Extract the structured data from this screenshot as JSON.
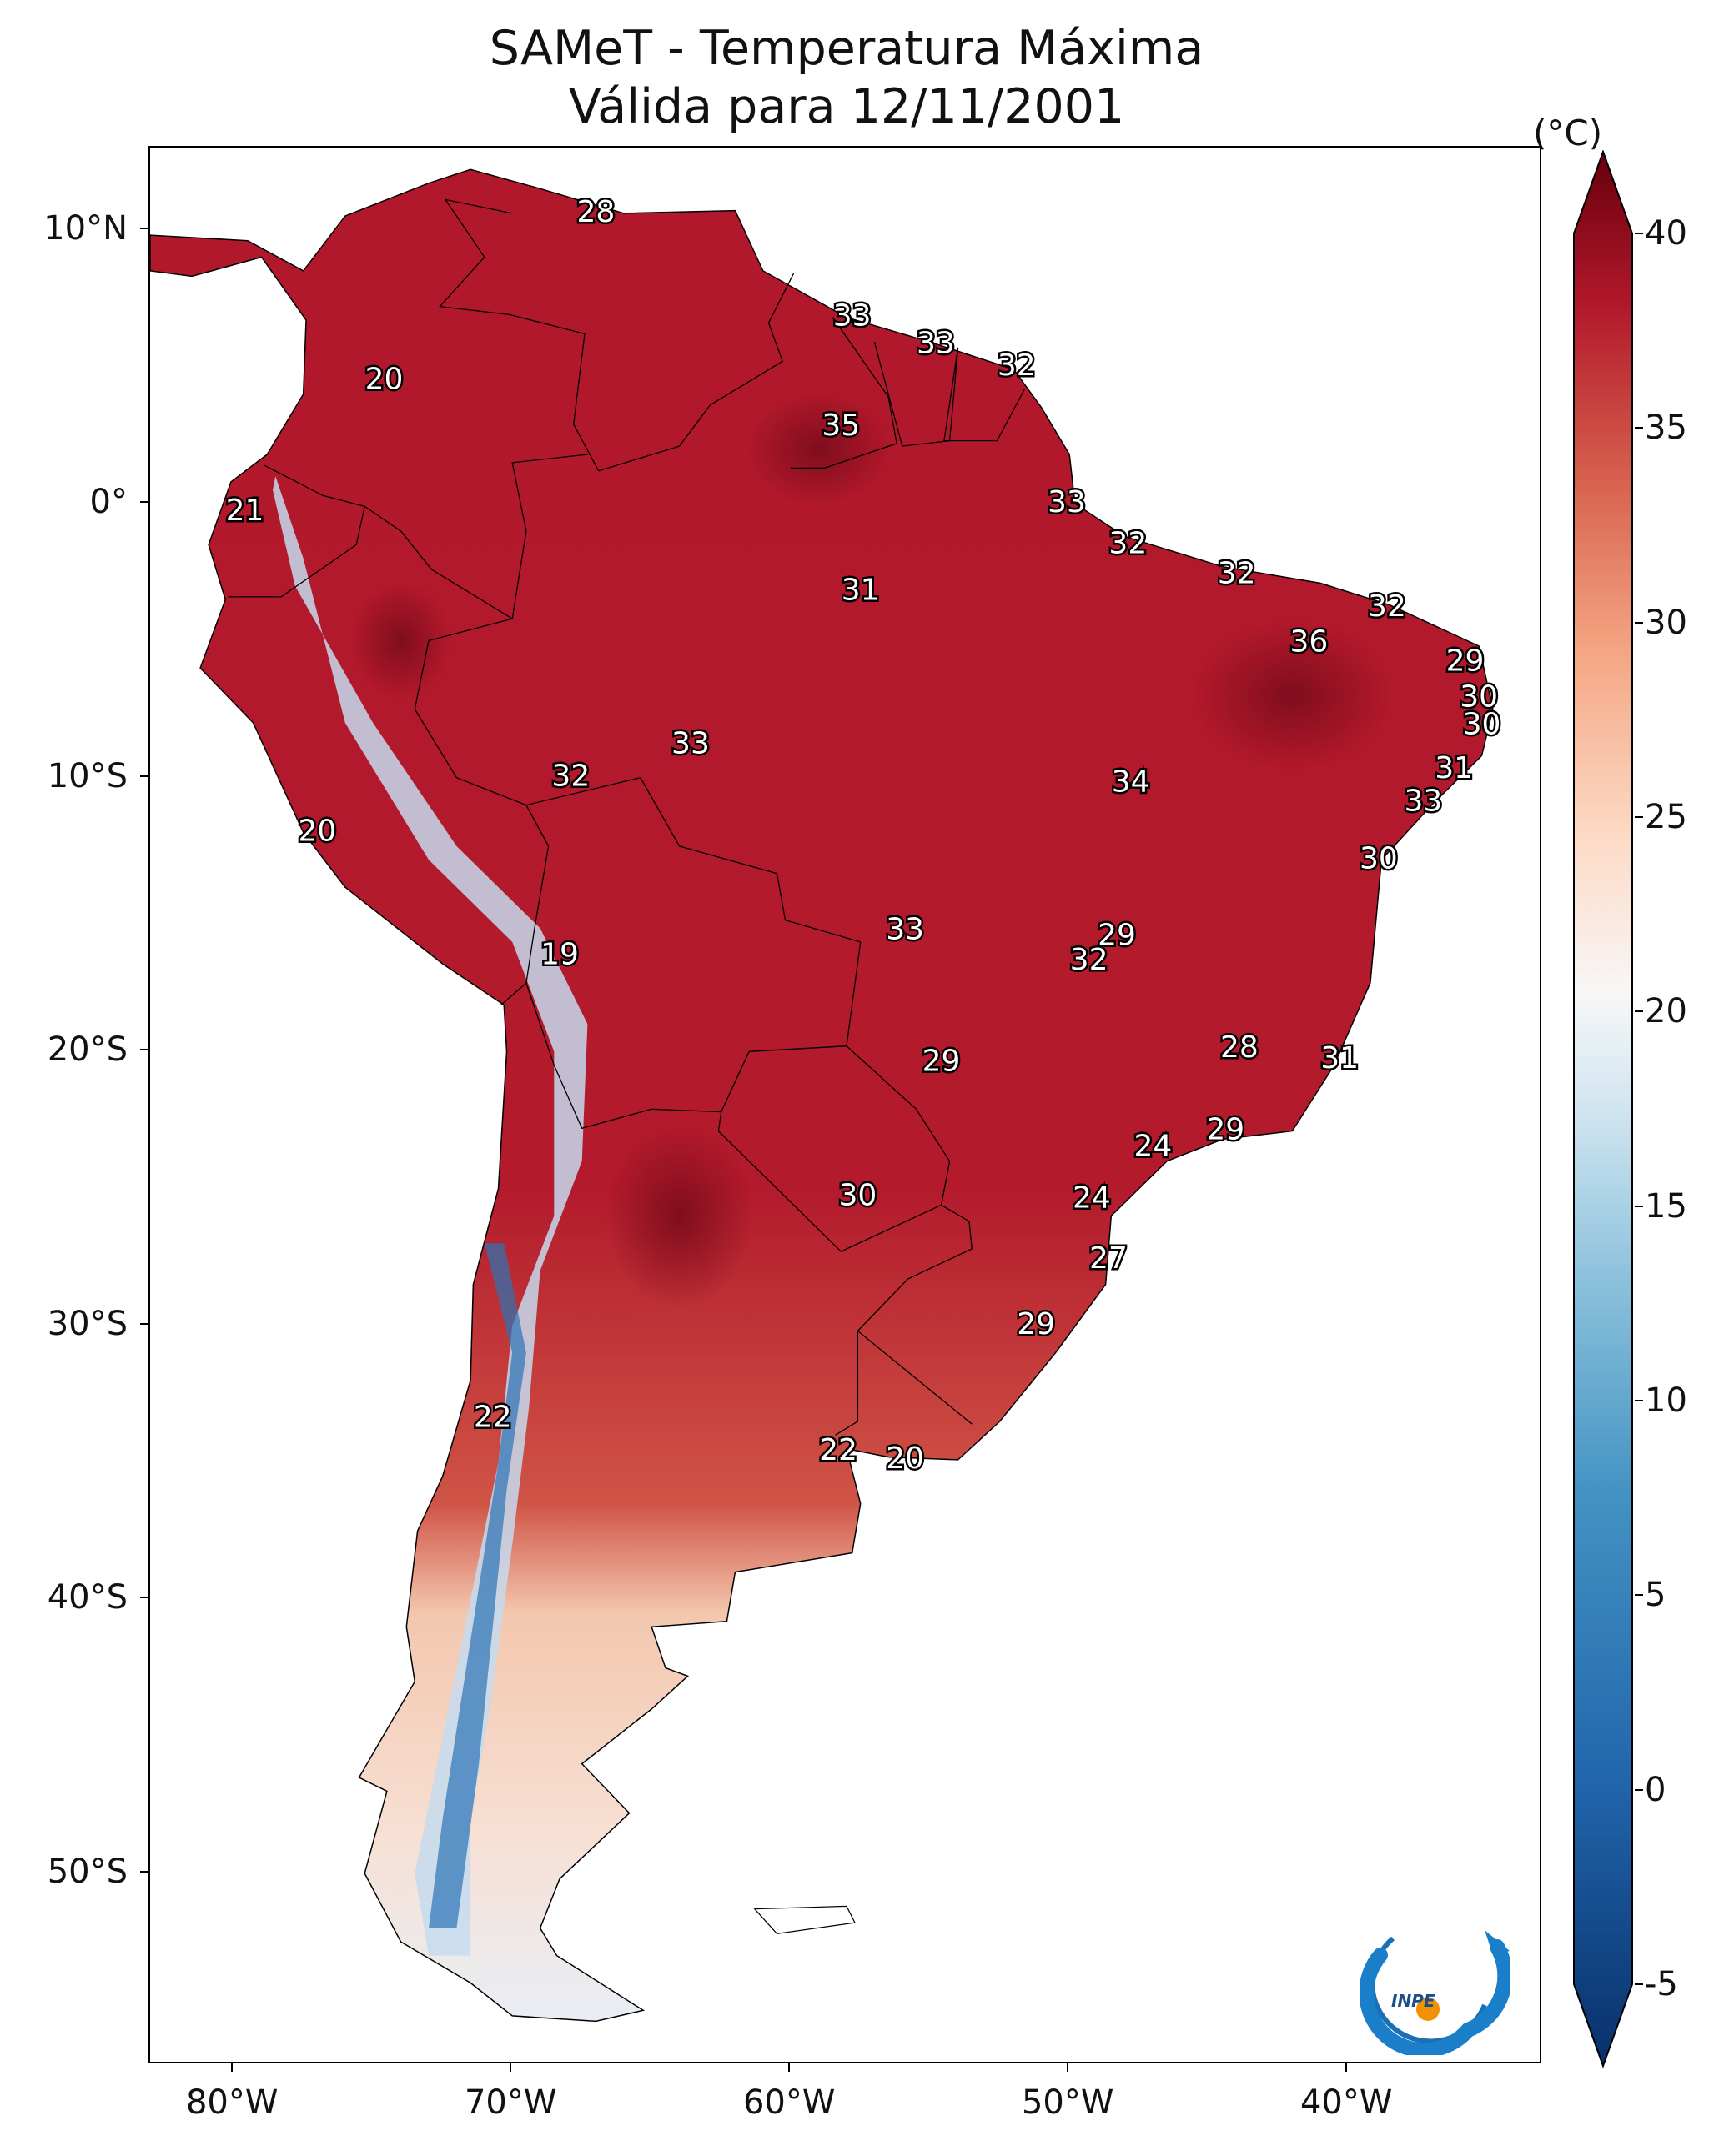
{
  "title": {
    "line1": "SAMeT - Temperatura Máxima",
    "line2": "Válida para 12/11/2001"
  },
  "map": {
    "projection": "PlateCarree",
    "lon_range": [
      -83,
      -33
    ],
    "lat_range": [
      -57,
      13
    ],
    "lon_ticks": [
      {
        "value": -80,
        "label": "80°W"
      },
      {
        "value": -70,
        "label": "70°W"
      },
      {
        "value": -60,
        "label": "60°W"
      },
      {
        "value": -50,
        "label": "50°W"
      },
      {
        "value": -40,
        "label": "40°W"
      }
    ],
    "lat_ticks": [
      {
        "value": 10,
        "label": "10°N"
      },
      {
        "value": 0,
        "label": "0°"
      },
      {
        "value": -10,
        "label": "10°S"
      },
      {
        "value": -20,
        "label": "20°S"
      },
      {
        "value": -30,
        "label": "30°S"
      },
      {
        "value": -40,
        "label": "40°S"
      },
      {
        "value": -50,
        "label": "50°S"
      }
    ],
    "variable": "Temperatura Máxima",
    "colormap": "RdBu_r",
    "colors": {
      "cold": "#08306b",
      "neutral": "#f7f7f7",
      "hot": "#67000d",
      "border": "#000000"
    }
  },
  "colorbar": {
    "unit": "(°C)",
    "range": [
      -5,
      40
    ],
    "ticks": [
      -5,
      0,
      5,
      10,
      15,
      20,
      25,
      30,
      35,
      40
    ],
    "extend": "both"
  },
  "station_labels": [
    {
      "lon": -67.0,
      "lat": 10.6,
      "value": "28"
    },
    {
      "lon": -74.6,
      "lat": 4.5,
      "value": "20"
    },
    {
      "lon": -57.8,
      "lat": 6.8,
      "value": "33"
    },
    {
      "lon": -54.8,
      "lat": 5.8,
      "value": "33"
    },
    {
      "lon": -51.9,
      "lat": 5.0,
      "value": "32"
    },
    {
      "lon": -58.2,
      "lat": 2.8,
      "value": "35"
    },
    {
      "lon": -79.6,
      "lat": -0.3,
      "value": "21"
    },
    {
      "lon": -50.1,
      "lat": 0.0,
      "value": "33"
    },
    {
      "lon": -47.9,
      "lat": -1.5,
      "value": "32"
    },
    {
      "lon": -44.0,
      "lat": -2.6,
      "value": "32"
    },
    {
      "lon": -38.6,
      "lat": -3.8,
      "value": "32"
    },
    {
      "lon": -57.5,
      "lat": -3.2,
      "value": "31"
    },
    {
      "lon": -41.4,
      "lat": -5.1,
      "value": "36"
    },
    {
      "lon": -35.8,
      "lat": -5.8,
      "value": "29"
    },
    {
      "lon": -35.3,
      "lat": -7.1,
      "value": "30"
    },
    {
      "lon": -35.2,
      "lat": -8.1,
      "value": "30"
    },
    {
      "lon": -63.6,
      "lat": -8.8,
      "value": "33"
    },
    {
      "lon": -36.2,
      "lat": -9.7,
      "value": "31"
    },
    {
      "lon": -67.9,
      "lat": -10.0,
      "value": "32"
    },
    {
      "lon": -47.8,
      "lat": -10.2,
      "value": "34"
    },
    {
      "lon": -37.3,
      "lat": -10.9,
      "value": "33"
    },
    {
      "lon": -77.0,
      "lat": -12.0,
      "value": "20"
    },
    {
      "lon": -38.9,
      "lat": -13.0,
      "value": "30"
    },
    {
      "lon": -55.9,
      "lat": -15.6,
      "value": "33"
    },
    {
      "lon": -48.3,
      "lat": -15.8,
      "value": "29"
    },
    {
      "lon": -49.3,
      "lat": -16.7,
      "value": "32"
    },
    {
      "lon": -68.3,
      "lat": -16.5,
      "value": "19"
    },
    {
      "lon": -54.6,
      "lat": -20.4,
      "value": "29"
    },
    {
      "lon": -43.9,
      "lat": -19.9,
      "value": "28"
    },
    {
      "lon": -40.3,
      "lat": -20.3,
      "value": "31"
    },
    {
      "lon": -44.4,
      "lat": -22.9,
      "value": "29"
    },
    {
      "lon": -47.0,
      "lat": -23.5,
      "value": "24"
    },
    {
      "lon": -57.6,
      "lat": -25.3,
      "value": "30"
    },
    {
      "lon": -49.2,
      "lat": -25.4,
      "value": "24"
    },
    {
      "lon": -48.6,
      "lat": -27.6,
      "value": "27"
    },
    {
      "lon": -51.2,
      "lat": -30.0,
      "value": "29"
    },
    {
      "lon": -70.7,
      "lat": -33.4,
      "value": "22"
    },
    {
      "lon": -58.3,
      "lat": -34.6,
      "value": "22"
    },
    {
      "lon": -55.9,
      "lat": -34.9,
      "value": "20"
    }
  ]
}
